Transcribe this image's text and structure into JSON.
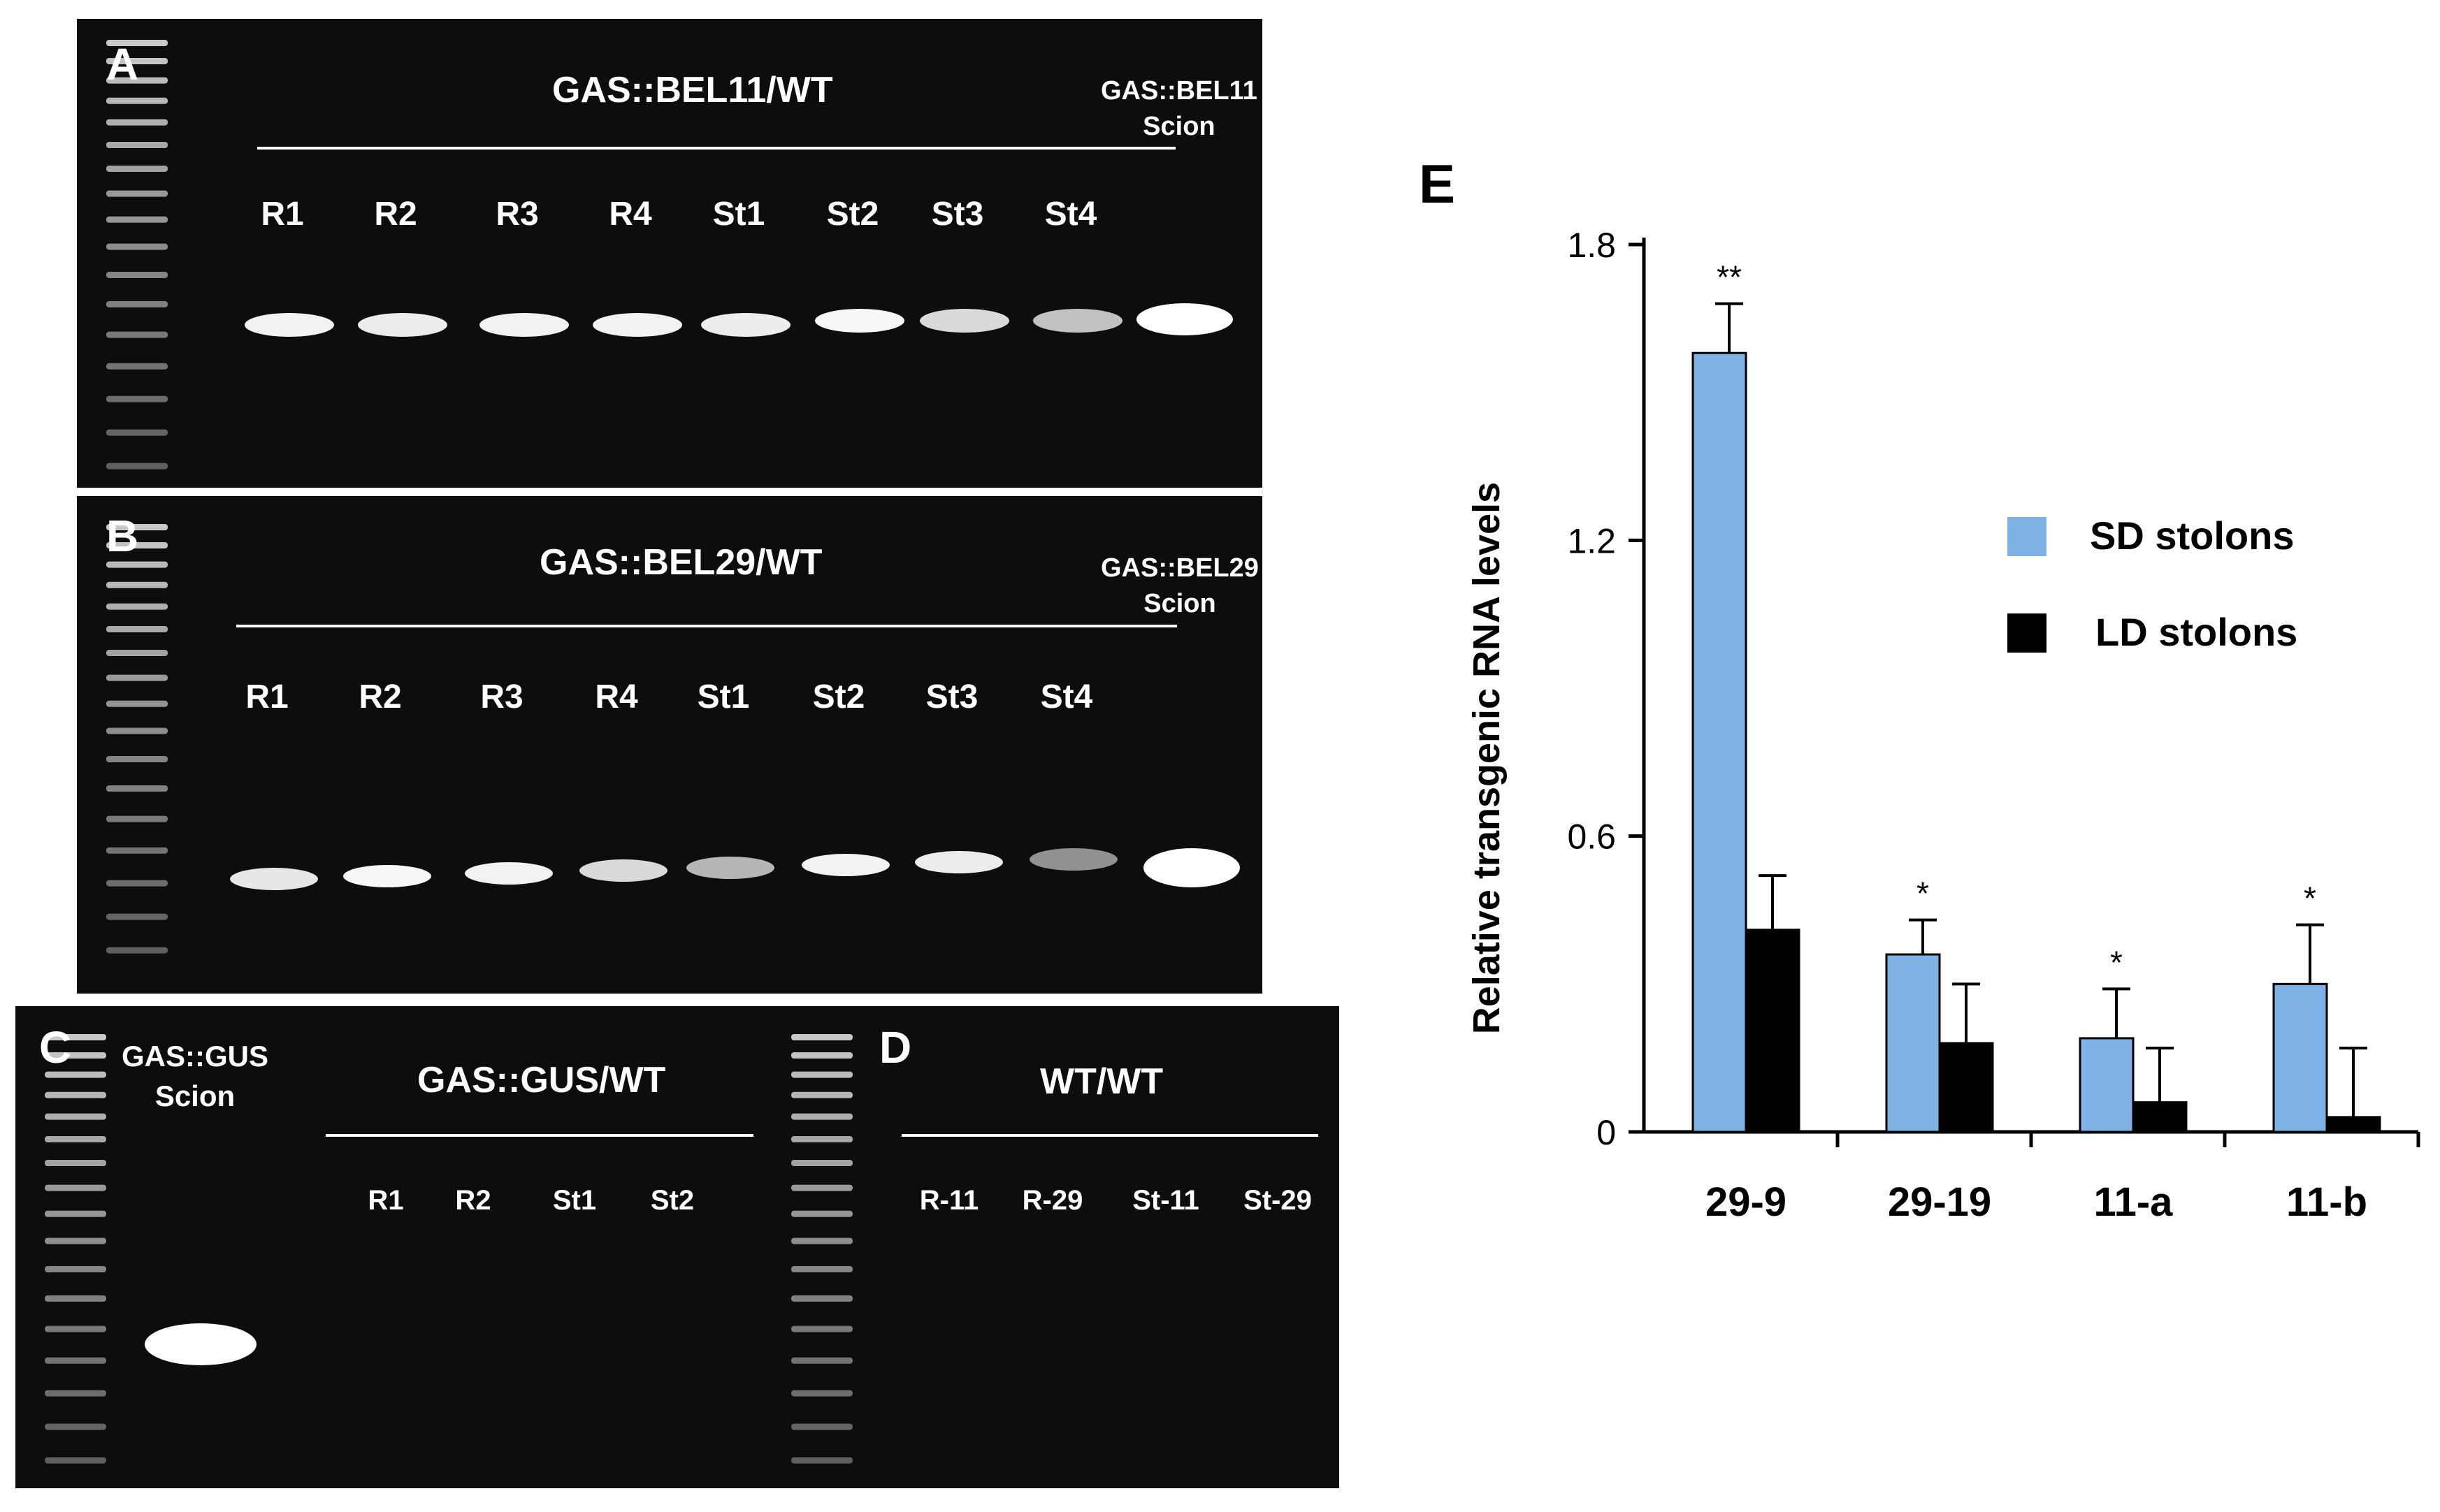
{
  "panels": {
    "a": {
      "letter": "A",
      "title": "GAS::BEL11/WT",
      "scion_line1": "GAS::BEL11",
      "scion_line2": "Scion",
      "lanes": [
        "R1",
        "R2",
        "R3",
        "R4",
        "St1",
        "St2",
        "St3",
        "St4"
      ]
    },
    "b": {
      "letter": "B",
      "title": "GAS::BEL29/WT",
      "scion_line1": "GAS::BEL29",
      "scion_line2": "Scion",
      "lanes": [
        "R1",
        "R2",
        "R3",
        "R4",
        "St1",
        "St2",
        "St3",
        "St4"
      ]
    },
    "c": {
      "letter": "C",
      "title": "GAS::GUS/WT",
      "scion_line1": "GAS::GUS",
      "scion_line2": "Scion",
      "lanes": [
        "R1",
        "R2",
        "St1",
        "St2"
      ]
    },
    "d": {
      "letter": "D",
      "title": "WT/WT",
      "lanes": [
        "R-11",
        "R-29",
        "St-11",
        "St-29"
      ]
    }
  },
  "chart_panel_letter": "E",
  "chart_data": {
    "type": "bar",
    "categories": [
      "29-9",
      "29-19",
      "11-a",
      "11-b"
    ],
    "series": [
      {
        "name": "SD stolons",
        "color": "#7fb2e5",
        "values": [
          1.58,
          0.36,
          0.19,
          0.3
        ],
        "errors": [
          0.1,
          0.07,
          0.1,
          0.12
        ],
        "significance": [
          "**",
          "*",
          "*",
          "*"
        ]
      },
      {
        "name": "LD stolons",
        "color": "#000000",
        "values": [
          0.41,
          0.18,
          0.06,
          0.03
        ],
        "errors": [
          0.11,
          0.12,
          0.11,
          0.14
        ]
      }
    ],
    "ylabel": "Relative transgenic RNA levels",
    "xlabel": "",
    "ylim": [
      0,
      1.8
    ],
    "yticks": [
      "0",
      "0.6",
      "1.2",
      "1.8"
    ],
    "grid": false,
    "legend_position": "right"
  }
}
